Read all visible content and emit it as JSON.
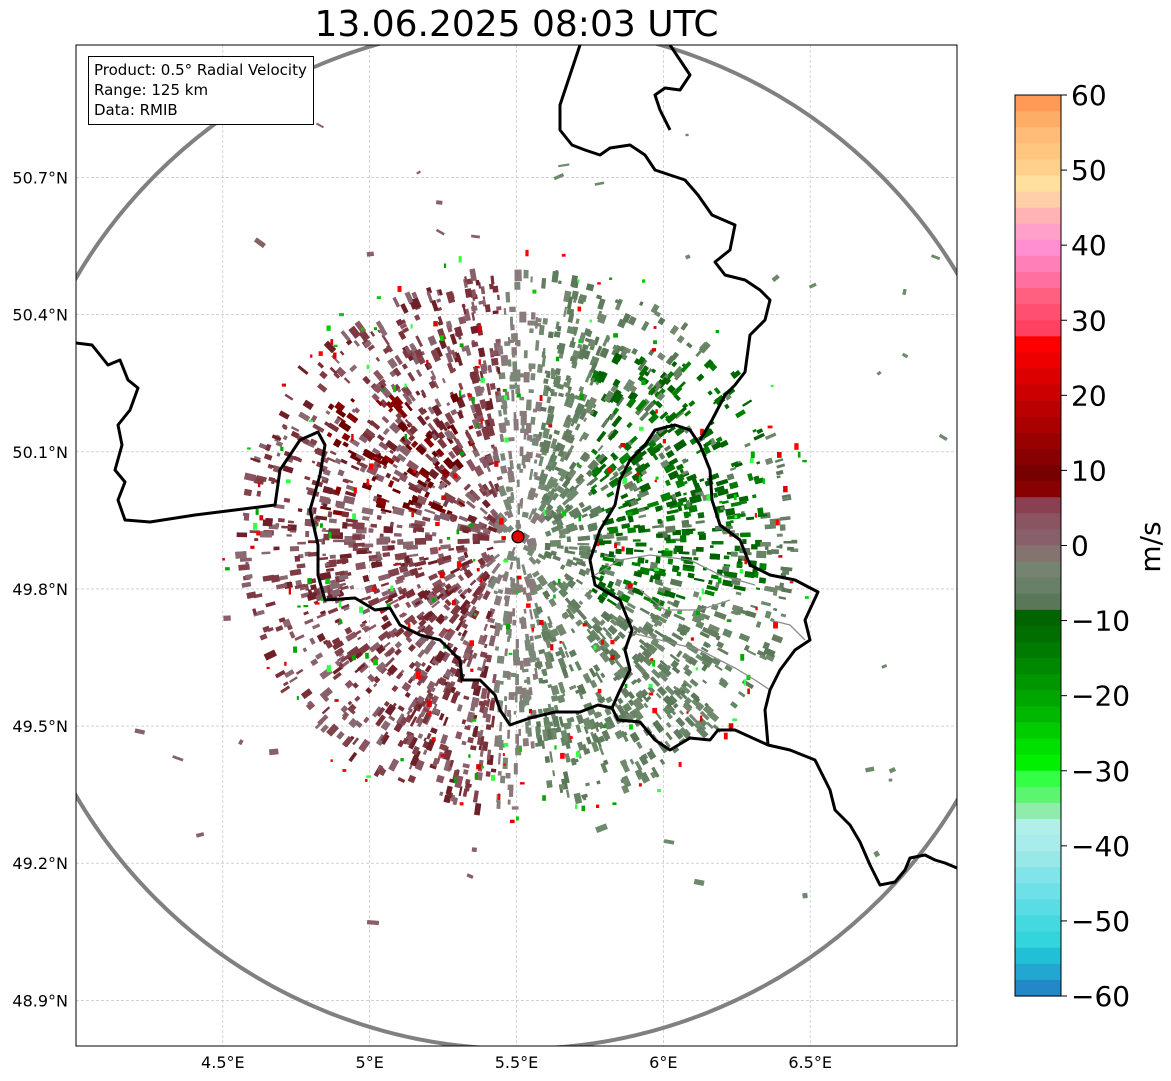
{
  "title": "13.06.2025 08:03 UTC",
  "info_box": {
    "product": "Product: 0.5° Radial Velocity",
    "range": "Range: 125 km",
    "data": "Data: RMIB"
  },
  "map": {
    "lat_ticks": [
      "50.7°N",
      "50.4°N",
      "50.1°N",
      "49.8°N",
      "49.5°N",
      "49.2°N",
      "48.9°N"
    ],
    "lat_values": [
      50.7,
      50.4,
      50.1,
      49.8,
      49.5,
      49.2,
      48.9
    ],
    "lon_ticks": [
      "4.5°E",
      "5°E",
      "5.5°E",
      "6°E",
      "6.5°E"
    ],
    "lon_values": [
      4.5,
      5.0,
      5.5,
      6.0,
      6.5
    ],
    "extent": {
      "lon_min": 4.0,
      "lon_max": 7.0,
      "lat_min": 48.8,
      "lat_max": 50.99
    },
    "radar_site": {
      "lon": 5.505,
      "lat": 49.914
    },
    "range_km": 125
  },
  "colorbar": {
    "label": "m/s",
    "ticks": [
      "60",
      "50",
      "40",
      "30",
      "20",
      "10",
      "0",
      "−10",
      "−20",
      "−30",
      "−40",
      "−50",
      "−60"
    ],
    "tick_values": [
      60,
      50,
      40,
      30,
      20,
      10,
      0,
      -10,
      -20,
      -30,
      -40,
      -50,
      -60
    ],
    "min": -60,
    "max": 60,
    "colors_top_to_bottom": [
      "#ff9955",
      "#ffad66",
      "#ffbb77",
      "#ffc680",
      "#ffd08c",
      "#ffe09f",
      "#ffd0a8",
      "#ffb3b3",
      "#ffa0c8",
      "#ff8fd0",
      "#ff80b8",
      "#ff6f9f",
      "#ff6080",
      "#ff5070",
      "#ff4060",
      "#ff0000",
      "#ee0000",
      "#dd0000",
      "#cc0000",
      "#bb0000",
      "#aa0000",
      "#990000",
      "#880000",
      "#770000",
      "#880000",
      "#8a4050",
      "#8a5560",
      "#88606c",
      "#847470",
      "#748470",
      "#688068",
      "#5a7858",
      "#006400",
      "#006e00",
      "#007a00",
      "#008800",
      "#009600",
      "#00a600",
      "#00b800",
      "#00cc00",
      "#00e000",
      "#00f000",
      "#33ff44",
      "#5cf570",
      "#90ecaa",
      "#b0f0e8",
      "#a8ecec",
      "#98e8e8",
      "#80e4e8",
      "#6ee0e8",
      "#5adce4",
      "#44d8e0",
      "#33d4dc",
      "#22c0d6",
      "#22a8d0",
      "#2288c8"
    ]
  }
}
